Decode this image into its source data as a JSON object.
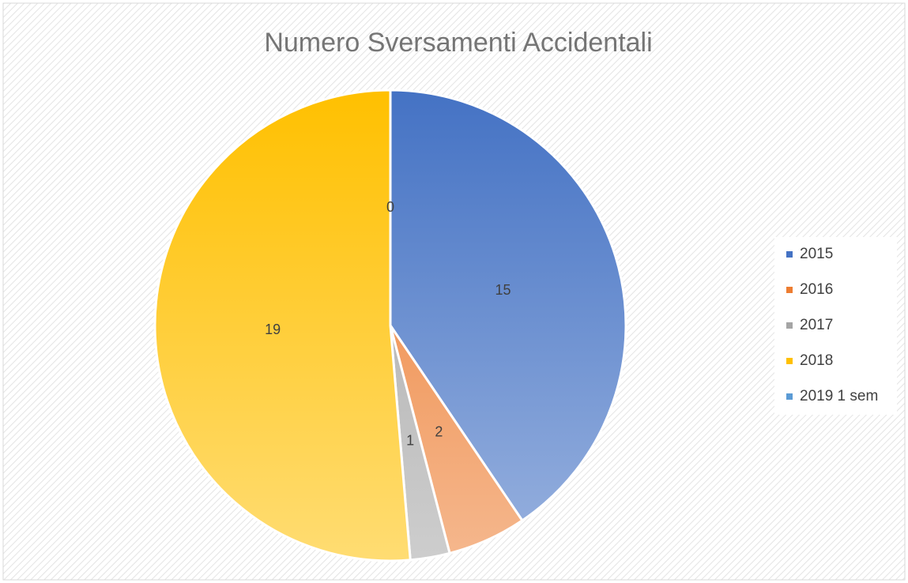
{
  "chart_data": {
    "type": "pie",
    "title": "Numero Sversamenti Accidentali",
    "categories": [
      "2015",
      "2016",
      "2017",
      "2018",
      "2019 1 sem"
    ],
    "values": [
      15,
      2,
      1,
      19,
      0
    ],
    "colors": [
      "#4472c4",
      "#ed7d31",
      "#a5a5a5",
      "#ffc000",
      "#5b9bd5"
    ],
    "legend": "right"
  }
}
